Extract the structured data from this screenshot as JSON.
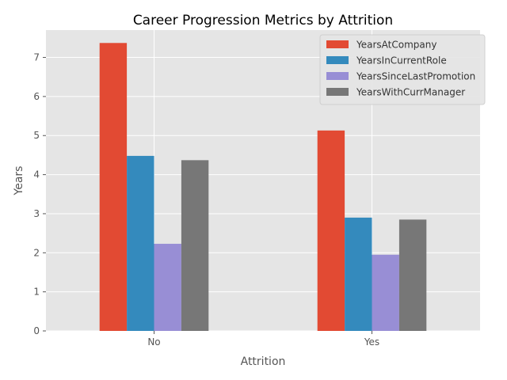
{
  "chart_data": {
    "type": "bar",
    "title": "Career Progression Metrics by Attrition",
    "xlabel": "Attrition",
    "ylabel": "Years",
    "categories": [
      "No",
      "Yes"
    ],
    "yticks": [
      0,
      1,
      2,
      3,
      4,
      5,
      6,
      7
    ],
    "ylim": [
      0,
      7.7
    ],
    "grid": true,
    "legend_position": "top-right",
    "series": [
      {
        "name": "YearsAtCompany",
        "color": "#E24A33",
        "values": [
          7.37,
          5.13
        ]
      },
      {
        "name": "YearsInCurrentRole",
        "color": "#348ABD",
        "values": [
          4.48,
          2.9
        ]
      },
      {
        "name": "YearsSinceLastPromotion",
        "color": "#988ED5",
        "values": [
          2.23,
          1.95
        ]
      },
      {
        "name": "YearsWithCurrManager",
        "color": "#777777",
        "values": [
          4.37,
          2.85
        ]
      }
    ]
  }
}
